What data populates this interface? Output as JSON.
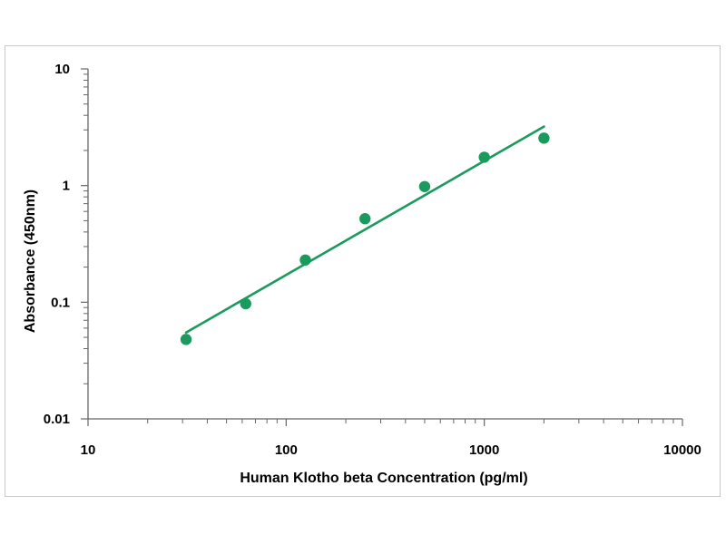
{
  "chart_data": {
    "type": "scatter",
    "title": "",
    "xlabel": "Human Klotho beta Concentration (pg/ml)",
    "ylabel": "Absorbance (450nm)",
    "x_scale": "log",
    "y_scale": "log",
    "xlim": [
      10,
      10000
    ],
    "ylim": [
      0.01,
      10
    ],
    "x_ticks": [
      "10",
      "100",
      "1000",
      "10000"
    ],
    "y_ticks": [
      "0.01",
      "0.1",
      "1",
      "10"
    ],
    "grid": false,
    "legend": "none",
    "series": [
      {
        "x": [
          31.25,
          62.5,
          125,
          250,
          500,
          1000,
          2000
        ],
        "y": [
          0.048,
          0.097,
          0.23,
          0.52,
          0.98,
          1.75,
          2.55
        ],
        "color": "#1a9a5c"
      }
    ],
    "fit_line": {
      "x": [
        31.25,
        2000
      ],
      "y": [
        0.055,
        3.2
      ],
      "color": "#1a9a5c"
    }
  }
}
